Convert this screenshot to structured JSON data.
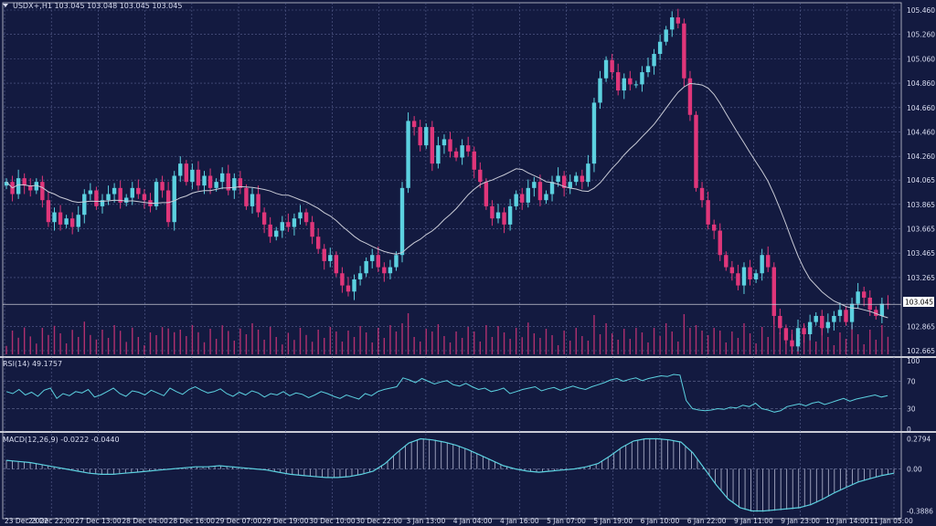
{
  "chart_data": {
    "type": "candlestick",
    "symbol": "USDX+,H1",
    "header": "USDX+,H1  103.045 103.048 103.045 103.045",
    "current_price": "103.045",
    "price_ticks": [
      "105.460",
      "105.260",
      "105.060",
      "104.860",
      "104.660",
      "104.460",
      "104.260",
      "104.065",
      "103.865",
      "103.665",
      "103.465",
      "103.265",
      "102.865",
      "102.665"
    ],
    "ylim": [
      102.62,
      105.52
    ],
    "x_labels": [
      "23 Dec 2022",
      "23 Dec 22:00",
      "27 Dec 13:00",
      "28 Dec 04:00",
      "28 Dec 16:00",
      "29 Dec 07:00",
      "29 Dec 19:00",
      "30 Dec 10:00",
      "30 Dec 22:00",
      "3 Jan 13:00",
      "4 Jan 04:00",
      "4 Jan 16:00",
      "5 Jan 07:00",
      "5 Jan 19:00",
      "6 Jan 10:00",
      "6 Jan 22:00",
      "9 Jan 11:00",
      "9 Jan 23:00",
      "10 Jan 14:00",
      "11 Jan 05:00"
    ],
    "close_path": [
      104.05,
      103.95,
      104.08,
      104.02,
      103.98,
      104.05,
      103.9,
      103.72,
      103.8,
      103.7,
      103.75,
      103.68,
      103.78,
      103.95,
      103.98,
      103.85,
      103.9,
      103.95,
      104.0,
      103.88,
      103.92,
      104.0,
      103.95,
      103.9,
      103.85,
      104.05,
      103.98,
      103.72,
      104.1,
      104.2,
      104.05,
      104.15,
      104.02,
      104.1,
      104.0,
      104.05,
      104.12,
      103.98,
      104.08,
      104.0,
      103.85,
      103.95,
      103.8,
      103.7,
      103.6,
      103.65,
      103.72,
      103.68,
      103.75,
      103.8,
      103.72,
      103.6,
      103.5,
      103.4,
      103.45,
      103.3,
      103.2,
      103.15,
      103.25,
      103.3,
      103.4,
      103.45,
      103.35,
      103.3,
      103.35,
      103.45,
      104.0,
      104.55,
      104.5,
      104.35,
      104.5,
      104.2,
      104.35,
      104.4,
      104.3,
      104.25,
      104.35,
      104.3,
      104.15,
      104.05,
      103.85,
      103.75,
      103.8,
      103.7,
      103.85,
      103.95,
      103.88,
      104.0,
      104.05,
      103.9,
      103.95,
      104.05,
      104.1,
      104.0,
      104.05,
      104.1,
      104.05,
      104.2,
      104.7,
      104.9,
      105.05,
      104.95,
      104.8,
      104.9,
      104.85,
      104.85,
      104.95,
      105.0,
      105.1,
      105.2,
      105.3,
      105.4,
      105.35,
      104.9,
      104.6,
      104.0,
      103.9,
      103.7,
      103.65,
      103.45,
      103.35,
      103.3,
      103.2,
      103.35,
      103.25,
      103.3,
      103.45,
      103.35,
      102.95,
      102.85,
      102.75,
      102.7,
      102.85,
      102.8,
      102.9,
      102.95,
      102.85,
      102.9,
      102.95,
      103.0,
      102.9,
      103.05,
      103.15,
      103.1,
      103.0,
      102.95,
      103.05,
      103.045
    ],
    "ma_period": 20,
    "volume_bars": true,
    "rsi": {
      "label": "RSI(14) 49.1757",
      "ylim": [
        0,
        100
      ],
      "levels": [
        30,
        70
      ],
      "ticks": [
        "100",
        "70",
        "30",
        "0"
      ],
      "values": [
        55,
        52,
        58,
        50,
        54,
        48,
        57,
        60,
        45,
        52,
        49,
        55,
        53,
        58,
        47,
        50,
        55,
        60,
        52,
        48,
        56,
        54,
        50,
        57,
        53,
        49,
        60,
        55,
        51,
        58,
        62,
        57,
        53,
        55,
        59,
        52,
        48,
        54,
        50,
        56,
        53,
        47,
        52,
        50,
        55,
        49,
        53,
        51,
        46,
        50,
        55,
        52,
        48,
        45,
        50,
        47,
        44,
        52,
        49,
        55,
        58,
        60,
        62,
        75,
        72,
        68,
        74,
        70,
        66,
        69,
        71,
        65,
        63,
        67,
        62,
        58,
        60,
        55,
        57,
        60,
        52,
        55,
        58,
        60,
        62,
        56,
        59,
        61,
        57,
        60,
        63,
        60,
        58,
        62,
        65,
        68,
        72,
        74,
        70,
        73,
        75,
        71,
        74,
        76,
        78,
        77,
        80,
        79,
        42,
        30,
        28,
        27,
        28,
        30,
        29,
        32,
        31,
        35,
        33,
        38,
        30,
        28,
        25,
        27,
        33,
        35,
        37,
        34,
        38,
        40,
        36,
        39,
        42,
        45,
        41,
        44,
        46,
        48,
        50,
        47,
        49
      ]
    },
    "macd": {
      "label": "MACD(12,26,9) -0.0222 -0.0440",
      "ylim": [
        -0.42,
        0.31
      ],
      "ticks": [
        "0.2794",
        "0.00",
        "-0.3886"
      ],
      "signal": [
        0.08,
        0.07,
        0.06,
        0.04,
        0.02,
        0.0,
        -0.02,
        -0.04,
        -0.05,
        -0.05,
        -0.04,
        -0.03,
        -0.02,
        -0.01,
        0.0,
        0.01,
        0.02,
        0.02,
        0.03,
        0.02,
        0.01,
        0.0,
        -0.01,
        -0.03,
        -0.05,
        -0.06,
        -0.07,
        -0.08,
        -0.08,
        -0.07,
        -0.05,
        -0.02,
        0.05,
        0.15,
        0.24,
        0.28,
        0.27,
        0.25,
        0.22,
        0.18,
        0.13,
        0.08,
        0.03,
        0.0,
        -0.02,
        -0.03,
        -0.02,
        -0.01,
        0.0,
        0.02,
        0.05,
        0.12,
        0.2,
        0.26,
        0.28,
        0.28,
        0.27,
        0.25,
        0.15,
        0.0,
        -0.15,
        -0.28,
        -0.36,
        -0.39,
        -0.39,
        -0.38,
        -0.37,
        -0.36,
        -0.33,
        -0.28,
        -0.22,
        -0.17,
        -0.12,
        -0.09,
        -0.06,
        -0.04
      ]
    }
  }
}
